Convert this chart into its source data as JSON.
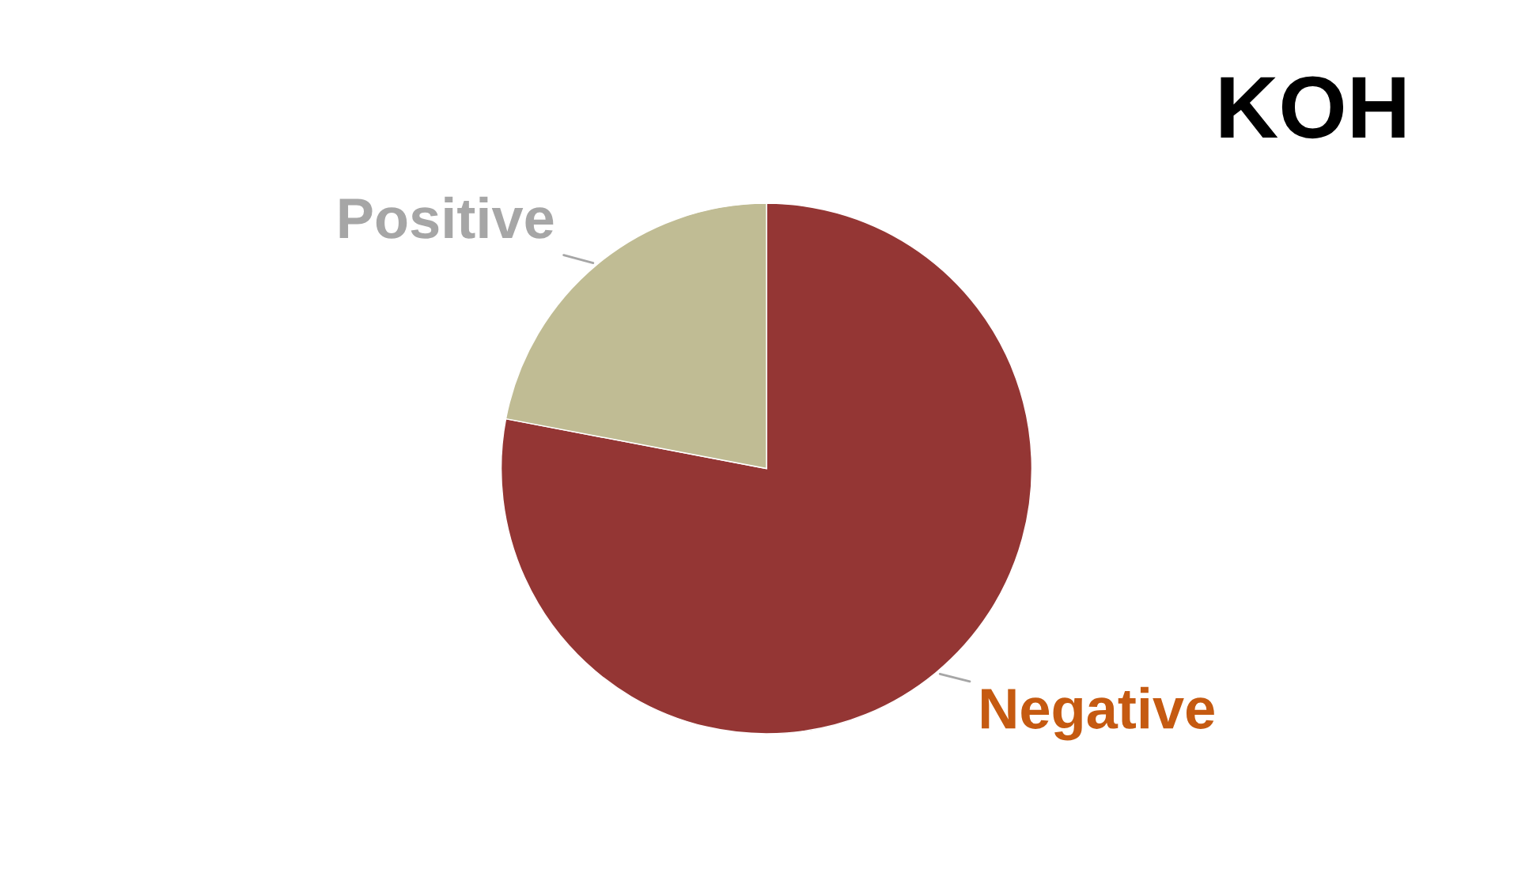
{
  "chart_data": {
    "type": "pie",
    "title": "KOH",
    "categories": [
      "Negative",
      "Positive"
    ],
    "values": [
      78,
      22
    ],
    "colors": [
      "#943634",
      "#c0bc94"
    ]
  }
}
